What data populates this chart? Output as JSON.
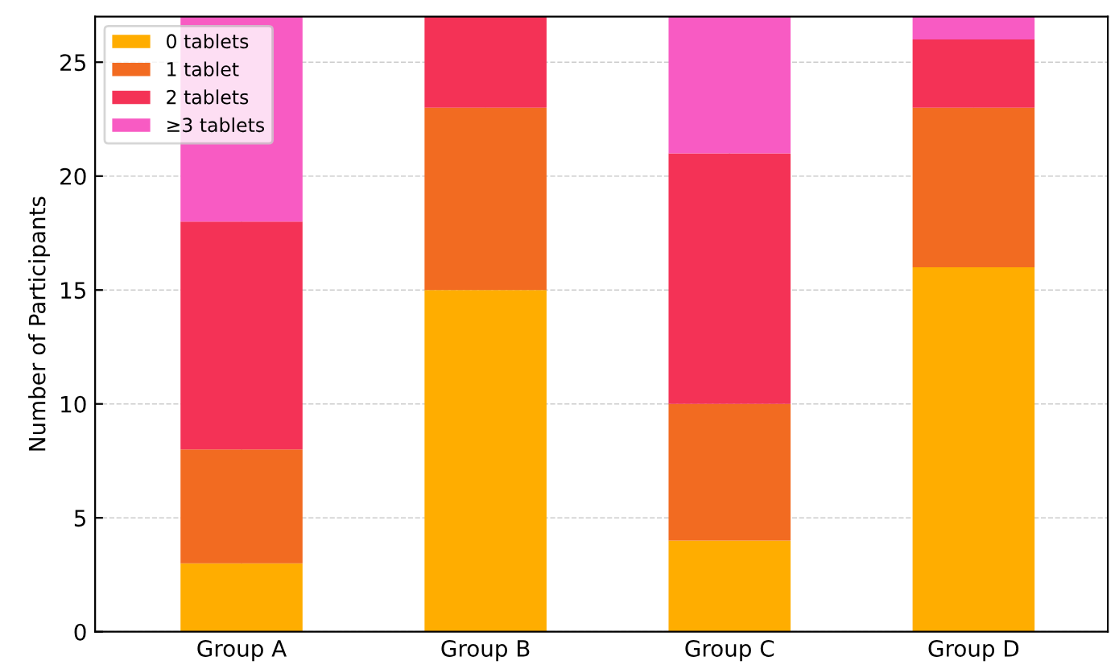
{
  "chart_data": {
    "type": "bar",
    "stacked": true,
    "ylabel": "Number of Participants",
    "categories": [
      "Group A",
      "Group B",
      "Group C",
      "Group D"
    ],
    "series": [
      {
        "name": "0 tablets",
        "color": "#ffad00",
        "values": [
          3,
          15,
          4,
          16
        ]
      },
      {
        "name": "1 tablet",
        "color": "#f26b21",
        "values": [
          5,
          8,
          6,
          7
        ]
      },
      {
        "name": "2 tablets",
        "color": "#f43256",
        "values": [
          10,
          4,
          11,
          3
        ]
      },
      {
        "name": "≥3 tablets",
        "color": "#f85bc3",
        "values": [
          9,
          0,
          6,
          1
        ]
      }
    ],
    "ylim": [
      0,
      27
    ],
    "yticks": [
      0,
      5,
      10,
      15,
      20,
      25
    ],
    "grid": true,
    "legend": "top left"
  }
}
